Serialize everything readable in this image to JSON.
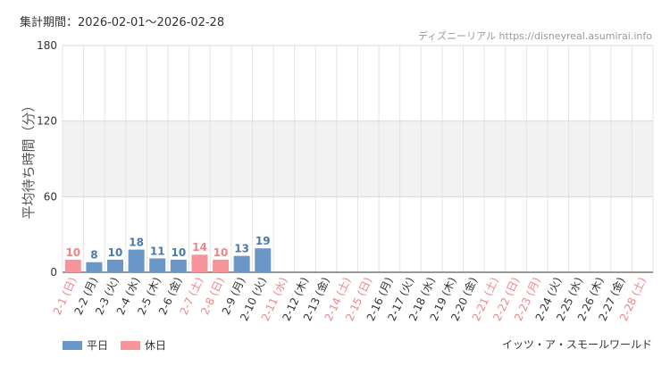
{
  "header": {
    "period": "集計期間：2026-02-01～2026-02-28",
    "credit": "ディズニーリアル https://disneyreal.asumirai.info",
    "attraction": "イッツ・ア・スモールワールド"
  },
  "legend": {
    "weekday": "平日",
    "holiday": "休日"
  },
  "colors": {
    "weekday": "#6a97c5",
    "holiday": "#f7959a",
    "weekday_text": "#4a7aaa",
    "holiday_text": "#ef8589",
    "band": "#f2f2f2",
    "grid": "#e4e4e4"
  },
  "chart_data": {
    "type": "bar",
    "ylabel": "平均待ち時間（分）",
    "ylim": [
      0,
      180
    ],
    "yticks": [
      0,
      60,
      120,
      180
    ],
    "shaded_band": [
      60,
      120
    ],
    "categories": [
      "2-1 (日)",
      "2-2 (月)",
      "2-3 (火)",
      "2-4 (水)",
      "2-5 (木)",
      "2-6 (金)",
      "2-7 (土)",
      "2-8 (日)",
      "2-9 (月)",
      "2-10 (火)",
      "2-11 (水)",
      "2-12 (木)",
      "2-13 (金)",
      "2-14 (土)",
      "2-15 (日)",
      "2-16 (月)",
      "2-17 (火)",
      "2-18 (水)",
      "2-19 (木)",
      "2-20 (金)",
      "2-21 (土)",
      "2-22 (日)",
      "2-23 (月)",
      "2-24 (火)",
      "2-25 (水)",
      "2-26 (木)",
      "2-27 (金)",
      "2-28 (土)"
    ],
    "values": [
      10,
      8,
      10,
      18,
      11,
      10,
      14,
      10,
      13,
      19,
      null,
      null,
      null,
      null,
      null,
      null,
      null,
      null,
      null,
      null,
      null,
      null,
      null,
      null,
      null,
      null,
      null,
      null
    ],
    "holiday": [
      true,
      false,
      false,
      false,
      false,
      false,
      true,
      true,
      false,
      false,
      true,
      false,
      false,
      true,
      true,
      false,
      false,
      false,
      false,
      false,
      true,
      true,
      true,
      false,
      false,
      false,
      false,
      true
    ],
    "series": [
      {
        "name": "平日"
      },
      {
        "name": "休日"
      }
    ]
  }
}
